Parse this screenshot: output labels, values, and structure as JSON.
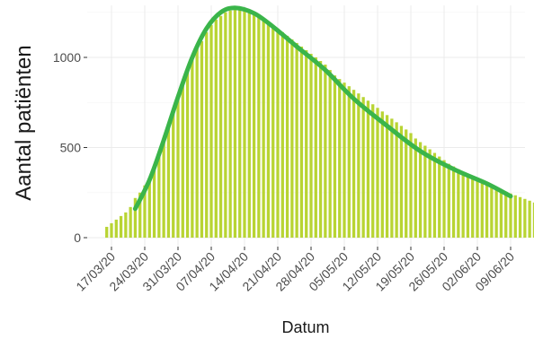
{
  "chart_data": {
    "type": "bar",
    "title": "",
    "xlabel": "Datum",
    "ylabel": "Aantal patiënten",
    "ylim": [
      0,
      1300
    ],
    "yticks": [
      0,
      500,
      1000
    ],
    "ytick_labels": [
      "0",
      "500",
      "1000"
    ],
    "grid": true,
    "legend": "none",
    "xtick_labels": [
      "17/03/20",
      "24/03/20",
      "31/03/20",
      "07/04/20",
      "14/04/20",
      "21/04/20",
      "28/04/20",
      "05/05/20",
      "12/05/20",
      "19/05/20",
      "26/05/20",
      "02/06/20",
      "09/06/20"
    ],
    "bar_start_date": "2020-03-16",
    "bar_color": "#b8d433",
    "line_color": "#3ab54a",
    "bars": [
      60,
      80,
      100,
      120,
      140,
      170,
      220,
      250,
      290,
      320,
      390,
      460,
      540,
      620,
      700,
      780,
      860,
      920,
      990,
      1050,
      1090,
      1140,
      1180,
      1210,
      1230,
      1250,
      1260,
      1270,
      1275,
      1270,
      1260,
      1250,
      1240,
      1220,
      1200,
      1180,
      1160,
      1140,
      1120,
      1100,
      1080,
      1060,
      1040,
      1020,
      1000,
      980,
      960,
      930,
      900,
      880,
      860,
      840,
      820,
      800,
      780,
      760,
      740,
      720,
      700,
      680,
      660,
      640,
      620,
      600,
      580,
      550,
      530,
      510,
      490,
      470,
      450,
      430,
      410,
      395,
      380,
      365,
      350,
      335,
      320,
      308,
      296,
      285,
      275,
      265,
      255,
      245,
      235,
      225,
      215,
      205,
      195,
      188,
      180,
      175,
      170,
      165,
      160,
      155,
      150,
      145,
      140,
      135,
      130,
      125,
      120,
      115,
      110,
      105,
      100
    ],
    "trend_line": {
      "x": [
        "2020-03-22",
        "2020-03-25",
        "2020-03-28",
        "2020-03-31",
        "2020-04-03",
        "2020-04-06",
        "2020-04-09",
        "2020-04-12",
        "2020-04-16",
        "2020-04-20",
        "2020-04-25",
        "2020-05-01",
        "2020-05-07",
        "2020-05-14",
        "2020-05-21",
        "2020-05-28",
        "2020-06-04",
        "2020-06-09"
      ],
      "y": [
        160,
        320,
        540,
        780,
        1000,
        1160,
        1250,
        1275,
        1245,
        1170,
        1060,
        930,
        770,
        620,
        480,
        380,
        300,
        230
      ]
    }
  }
}
